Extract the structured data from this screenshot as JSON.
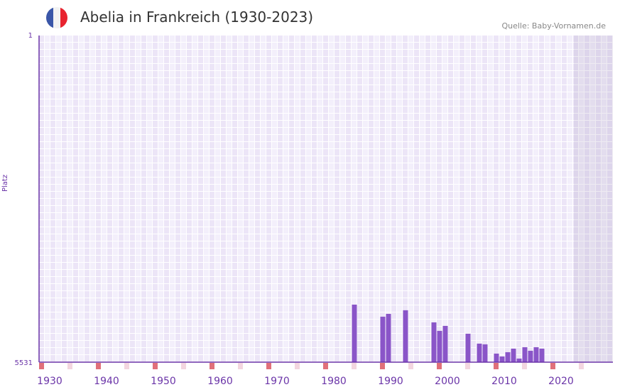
{
  "header": {
    "title": "Abelia in Frankreich (1930-2023)",
    "source": "Quelle: Baby-Vornamen.de",
    "flag_colors": [
      "#3a56a8",
      "#f2f2f2",
      "#e8232f"
    ]
  },
  "chart_data": {
    "type": "bar",
    "title": "Abelia in Frankreich (1930-2023)",
    "ylabel": "Platz",
    "xlabel": "",
    "ylim": [
      5531,
      1
    ],
    "xlim": [
      1928,
      2028
    ],
    "y_ticks": [
      "1",
      "5531"
    ],
    "x_ticks": [
      "1930",
      "1940",
      "1950",
      "1960",
      "1970",
      "1980",
      "1990",
      "2000",
      "2010",
      "2020"
    ],
    "bar_color": "#8a55c8",
    "x": [
      1983,
      1988,
      1989,
      1992,
      1997,
      1998,
      1999,
      2003,
      2005,
      2006,
      2008,
      2009,
      2010,
      2011,
      2012,
      2013,
      2014,
      2015,
      2016
    ],
    "values": [
      4557,
      4761,
      4713,
      4652,
      4857,
      5001,
      4917,
      5049,
      5217,
      5229,
      5386,
      5434,
      5362,
      5302,
      5470,
      5278,
      5338,
      5278,
      5302
    ],
    "shaded_from_year": 2022
  }
}
